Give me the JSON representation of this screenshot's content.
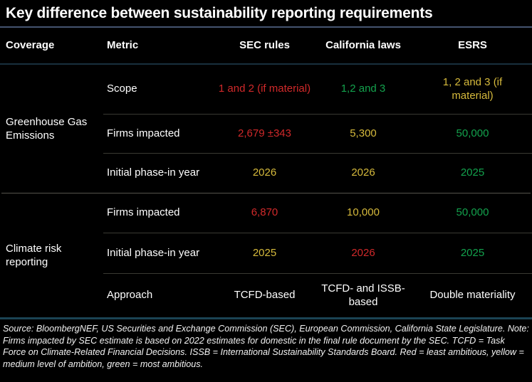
{
  "title": "Key difference between sustainability reporting requirements",
  "colors": {
    "background": "#000000",
    "text": "#ffffff",
    "red": "#d1292a",
    "yellow": "#d6ba3c",
    "green": "#13a24d",
    "title_underline": "#44546f",
    "header_underline": "#18303d",
    "bottom_line": "#1b4354",
    "group_divider": "#55544d",
    "row_divider": "#3a3a33"
  },
  "chart_data": {
    "type": "table",
    "title": "Key difference between sustainability reporting requirements",
    "columns": [
      "Coverage",
      "Metric",
      "SEC rules",
      "California laws",
      "ESRS"
    ],
    "groups": [
      {
        "coverage": "Greenhouse Gas Emissions",
        "rows": [
          {
            "metric": "Scope",
            "values": [
              {
                "text": "1 and 2 (if material)",
                "color": "red"
              },
              {
                "text": "1,2 and 3",
                "color": "green"
              },
              {
                "text": "1, 2 and 3 (if material)",
                "color": "yellow"
              }
            ]
          },
          {
            "metric": "Firms impacted",
            "values": [
              {
                "text": "2,679 ±343",
                "color": "red"
              },
              {
                "text": "5,300",
                "color": "yellow"
              },
              {
                "text": "50,000",
                "color": "green"
              }
            ]
          },
          {
            "metric": "Initial phase-in year",
            "values": [
              {
                "text": "2026",
                "color": "yellow"
              },
              {
                "text": "2026",
                "color": "yellow"
              },
              {
                "text": "2025",
                "color": "green"
              }
            ]
          }
        ]
      },
      {
        "coverage": "Climate risk reporting",
        "rows": [
          {
            "metric": "Firms impacted",
            "values": [
              {
                "text": "6,870",
                "color": "red"
              },
              {
                "text": "10,000",
                "color": "yellow"
              },
              {
                "text": "50,000",
                "color": "green"
              }
            ]
          },
          {
            "metric": "Initial phase-in year",
            "values": [
              {
                "text": "2025",
                "color": "yellow"
              },
              {
                "text": "2026",
                "color": "red"
              },
              {
                "text": "2025",
                "color": "green"
              }
            ]
          },
          {
            "metric": "Approach",
            "values": [
              {
                "text": "TCFD-based",
                "color": "white"
              },
              {
                "text": "TCFD- and ISSB-based",
                "color": "white"
              },
              {
                "text": "Double materiality",
                "color": "white"
              }
            ]
          }
        ]
      }
    ],
    "color_legend": {
      "red": "least ambitious",
      "yellow": "medium level of ambition",
      "green": "most ambitious"
    }
  },
  "footer": {
    "note": "Source: BloombergNEF, US Securities and Exchange Commission (SEC), European Commission, California State Legislature. Note: Firms impacted by SEC estimate is based on 2022 estimates for domestic in the final rule document by the SEC. TCFD = Task Force on Climate-Related Financial Decisions. ISSB = International Sustainability Standards Board. Red = least ambitious, yellow = medium level of ambition, green = most ambitious."
  }
}
